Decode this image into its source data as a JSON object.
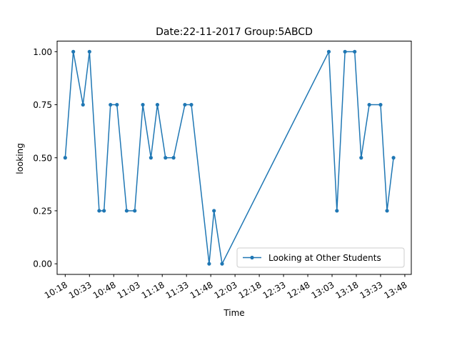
{
  "chart_data": {
    "type": "line",
    "title": "Date:22-11-2017  Group:5ABCD",
    "xlabel": "Time",
    "ylabel": "looking",
    "ylim": [
      -0.05,
      1.05
    ],
    "yticks": [
      0.0,
      0.25,
      0.5,
      0.75,
      1.0
    ],
    "ytick_labels": [
      "0.00",
      "0.25",
      "0.50",
      "0.75",
      "1.00"
    ],
    "xlim": [
      "10:13",
      "13:52"
    ],
    "xticks": [
      "10:18",
      "10:33",
      "10:48",
      "11:03",
      "11:18",
      "11:33",
      "11:48",
      "12:03",
      "12:18",
      "12:33",
      "12:48",
      "13:03",
      "13:18",
      "13:33",
      "13:48"
    ],
    "grid": false,
    "legend_position": "lower right",
    "series": [
      {
        "name": "Looking at Other Students",
        "color": "#1f77b4",
        "marker": "circle",
        "points": [
          {
            "x": "10:18",
            "y": 0.5
          },
          {
            "x": "10:23",
            "y": 1.0
          },
          {
            "x": "10:29",
            "y": 0.75
          },
          {
            "x": "10:33",
            "y": 1.0
          },
          {
            "x": "10:39",
            "y": 0.25
          },
          {
            "x": "10:42",
            "y": 0.25
          },
          {
            "x": "10:46",
            "y": 0.75
          },
          {
            "x": "10:50",
            "y": 0.75
          },
          {
            "x": "10:56",
            "y": 0.25
          },
          {
            "x": "11:01",
            "y": 0.25
          },
          {
            "x": "11:06",
            "y": 0.75
          },
          {
            "x": "11:11",
            "y": 0.5
          },
          {
            "x": "11:15",
            "y": 0.75
          },
          {
            "x": "11:20",
            "y": 0.5
          },
          {
            "x": "11:25",
            "y": 0.5
          },
          {
            "x": "11:32",
            "y": 0.75
          },
          {
            "x": "11:36",
            "y": 0.75
          },
          {
            "x": "11:47",
            "y": 0.0
          },
          {
            "x": "11:50",
            "y": 0.25
          },
          {
            "x": "11:55",
            "y": 0.0
          },
          {
            "x": "13:01",
            "y": 1.0
          },
          {
            "x": "13:06",
            "y": 0.25
          },
          {
            "x": "13:11",
            "y": 1.0
          },
          {
            "x": "13:17",
            "y": 1.0
          },
          {
            "x": "13:21",
            "y": 0.5
          },
          {
            "x": "13:26",
            "y": 0.75
          },
          {
            "x": "13:33",
            "y": 0.75
          },
          {
            "x": "13:37",
            "y": 0.25
          },
          {
            "x": "13:41",
            "y": 0.5
          }
        ]
      }
    ]
  }
}
